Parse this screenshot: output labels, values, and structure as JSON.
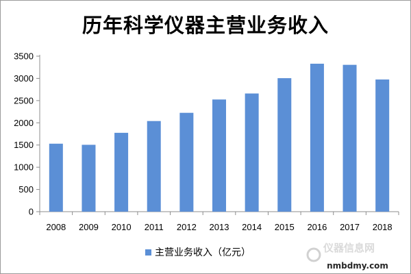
{
  "chart_data": {
    "type": "bar",
    "title": "历年科学仪器主营业务收入",
    "categories": [
      "2008",
      "2009",
      "2010",
      "2011",
      "2012",
      "2013",
      "2014",
      "2015",
      "2016",
      "2017",
      "2018"
    ],
    "series": [
      {
        "name": "主营业务收入（亿元）",
        "values": [
          1530,
          1505,
          1775,
          2040,
          2225,
          2525,
          2660,
          3005,
          3330,
          3305,
          2975
        ],
        "color": "#5B8FD6"
      }
    ],
    "ylim": [
      0,
      3500
    ],
    "yticks": [
      "0",
      "500",
      "1000",
      "1500",
      "2000",
      "2500",
      "3000",
      "3500"
    ],
    "grid": false,
    "legend_position": "bottom"
  },
  "watermark": {
    "site_text": "nmbdmy.com",
    "logo_text": "仪器信息网"
  }
}
